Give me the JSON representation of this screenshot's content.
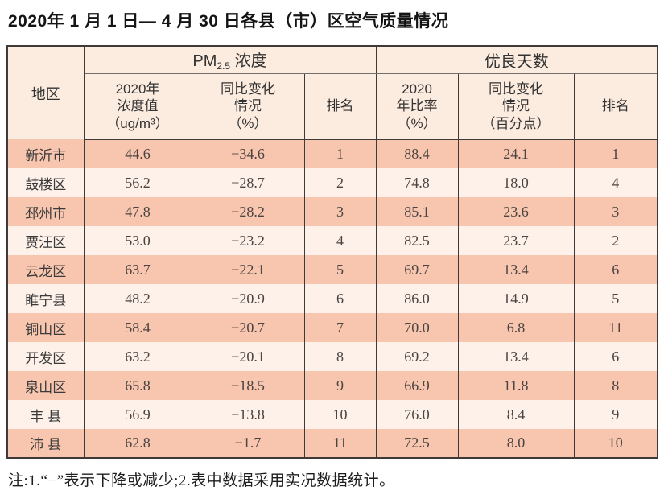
{
  "title": "2020年 1 月 1 日— 4 月 30 日各县（市）区空气质量情况",
  "colors": {
    "row-salmon": "#f8c6ae",
    "row-light": "#fdf1e9",
    "header-bg": "#fcebdf",
    "border-dark": "#3e3a39"
  },
  "table": {
    "region_header": "地区",
    "pm_group": {
      "prefix": "PM",
      "sub": "2.5",
      "suffix": " 浓度"
    },
    "good_group": "优良天数",
    "columns": [
      "2020年\n浓度值\n（ug/m³）",
      "同比变化\n情况\n（%）",
      "排名",
      "2020\n年比率\n（%）",
      "同比变化\n情况\n（百分点）",
      "排名"
    ],
    "row_keys": [
      "region",
      "pm25",
      "pm25_change",
      "pm25_rank",
      "good_ratio",
      "good_change",
      "good_rank"
    ],
    "rows": [
      {
        "region": "新沂市",
        "pm25": "44.6",
        "pm25_change": "−34.6",
        "pm25_rank": "1",
        "good_ratio": "88.4",
        "good_change": "24.1",
        "good_rank": "1"
      },
      {
        "region": "鼓楼区",
        "pm25": "56.2",
        "pm25_change": "−28.7",
        "pm25_rank": "2",
        "good_ratio": "74.8",
        "good_change": "18.0",
        "good_rank": "4"
      },
      {
        "region": "邳州市",
        "pm25": "47.8",
        "pm25_change": "−28.2",
        "pm25_rank": "3",
        "good_ratio": "85.1",
        "good_change": "23.6",
        "good_rank": "3"
      },
      {
        "region": "贾汪区",
        "pm25": "53.0",
        "pm25_change": "−23.2",
        "pm25_rank": "4",
        "good_ratio": "82.5",
        "good_change": "23.7",
        "good_rank": "2"
      },
      {
        "region": "云龙区",
        "pm25": "63.7",
        "pm25_change": "−22.1",
        "pm25_rank": "5",
        "good_ratio": "69.7",
        "good_change": "13.4",
        "good_rank": "6"
      },
      {
        "region": "睢宁县",
        "pm25": "48.2",
        "pm25_change": "−20.9",
        "pm25_rank": "6",
        "good_ratio": "86.0",
        "good_change": "14.9",
        "good_rank": "5"
      },
      {
        "region": "铜山区",
        "pm25": "58.4",
        "pm25_change": "−20.7",
        "pm25_rank": "7",
        "good_ratio": "70.0",
        "good_change": "6.8",
        "good_rank": "11"
      },
      {
        "region": "开发区",
        "pm25": "63.2",
        "pm25_change": "−20.1",
        "pm25_rank": "8",
        "good_ratio": "69.2",
        "good_change": "13.4",
        "good_rank": "6"
      },
      {
        "region": "泉山区",
        "pm25": "65.8",
        "pm25_change": "−18.5",
        "pm25_rank": "9",
        "good_ratio": "66.9",
        "good_change": "11.8",
        "good_rank": "8"
      },
      {
        "region": "丰 县",
        "pm25": "56.9",
        "pm25_change": "−13.8",
        "pm25_rank": "10",
        "good_ratio": "76.0",
        "good_change": "8.4",
        "good_rank": "9"
      },
      {
        "region": "沛 县",
        "pm25": "62.8",
        "pm25_change": "−1.7",
        "pm25_rank": "11",
        "good_ratio": "72.5",
        "good_change": "8.0",
        "good_rank": "10"
      }
    ]
  },
  "footnote": "注:1.“−”表示下降或减少;2.表中数据采用实况数据统计。"
}
